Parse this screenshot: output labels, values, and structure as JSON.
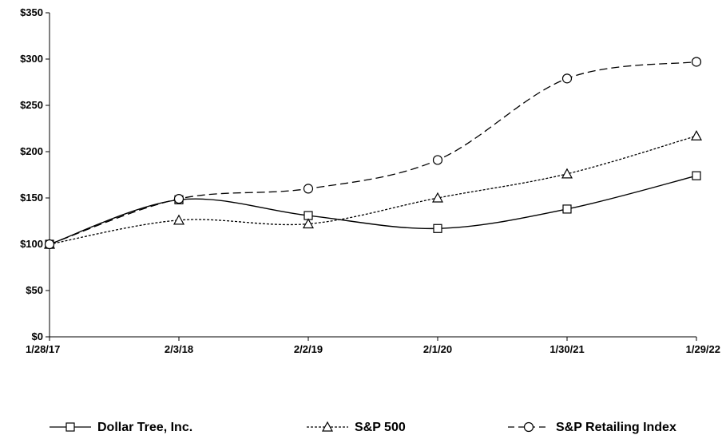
{
  "chart_data": {
    "type": "line",
    "title": "",
    "xlabel": "",
    "ylabel": "",
    "categories": [
      "1/28/17",
      "2/3/18",
      "2/2/19",
      "2/1/20",
      "1/30/21",
      "1/29/22"
    ],
    "y_ticks": [
      "$0",
      "$50",
      "$100",
      "$150",
      "$200",
      "$250",
      "$300",
      "$350"
    ],
    "ylim": [
      0,
      350
    ],
    "grid": false,
    "legend_position": "bottom",
    "series": [
      {
        "name": "Dollar Tree, Inc.",
        "marker": "square",
        "dash": "solid",
        "values": [
          100,
          148,
          131,
          117,
          138,
          174
        ]
      },
      {
        "name": "S&P 500",
        "marker": "triangle",
        "dash": "dotted",
        "values": [
          100,
          126,
          122,
          150,
          176,
          217
        ]
      },
      {
        "name": "S&P Retailing Index",
        "marker": "circle",
        "dash": "dashed",
        "values": [
          100,
          149,
          160,
          191,
          279,
          297
        ]
      }
    ]
  }
}
